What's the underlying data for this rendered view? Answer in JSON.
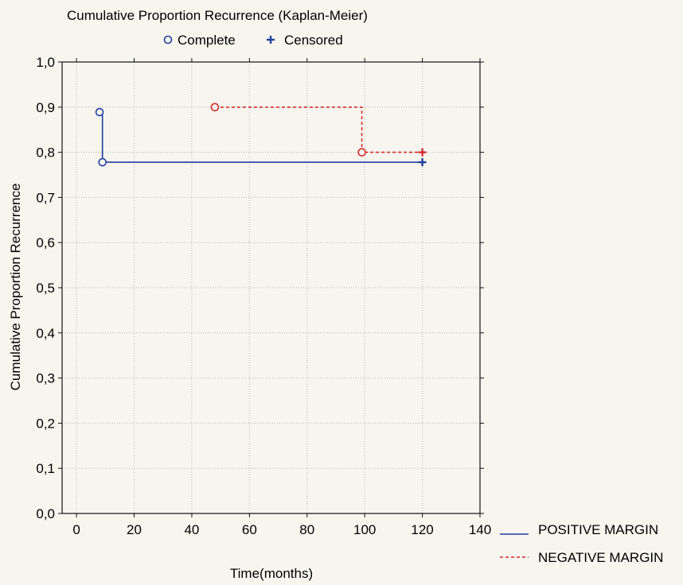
{
  "chart_data": {
    "type": "line",
    "title": "Cumulative Proportion Recurrence (Kaplan-Meier)",
    "xlabel": "Time(months)",
    "ylabel": "Cumulative Proportion Recurrence",
    "xlim": [
      -5,
      140
    ],
    "ylim": [
      0,
      1.0
    ],
    "x_ticks": [
      0,
      20,
      40,
      60,
      80,
      100,
      120,
      140
    ],
    "x_tick_labels": [
      "0",
      "20",
      "40",
      "60",
      "80",
      "100",
      "120",
      "140"
    ],
    "y_ticks": [
      0,
      0.1,
      0.2,
      0.3,
      0.4,
      0.5,
      0.6,
      0.7,
      0.8,
      0.9,
      1.0
    ],
    "y_tick_labels": [
      "0,0",
      "0,1",
      "0,2",
      "0,3",
      "0,4",
      "0,5",
      "0,6",
      "0,7",
      "0,8",
      "0,9",
      "1,0"
    ],
    "grid": true,
    "marker_legend": {
      "position": "top",
      "items": [
        {
          "symbol": "circle",
          "label": "Complete"
        },
        {
          "symbol": "plus",
          "label": "Censored"
        }
      ]
    },
    "series_legend_position": "bottom-right",
    "series": [
      {
        "name": "POSITIVE MARGIN",
        "color": "#1f3fa0",
        "line_style": "solid",
        "steps": [
          [
            8,
            0.889
          ],
          [
            9,
            0.778
          ],
          [
            120,
            0.778
          ]
        ],
        "complete": [
          [
            8,
            0.889
          ],
          [
            9,
            0.778
          ]
        ],
        "censored": [
          [
            120,
            0.778
          ]
        ]
      },
      {
        "name": "NEGATIVE MARGIN",
        "color": "#d42a2a",
        "line_style": "dashed",
        "steps": [
          [
            48,
            0.9
          ],
          [
            99,
            0.8
          ],
          [
            120,
            0.8
          ]
        ],
        "complete": [
          [
            48,
            0.9
          ],
          [
            99,
            0.8
          ]
        ],
        "censored": [
          [
            120,
            0.8
          ]
        ]
      }
    ]
  }
}
